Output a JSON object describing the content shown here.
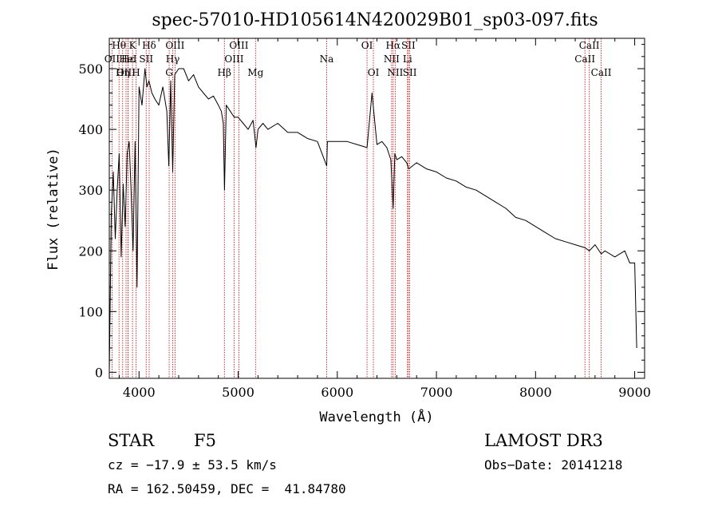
{
  "chart_data": {
    "type": "line",
    "title": "spec-57010-HD105614N420029B01_sp03-097.fits",
    "xlabel": "Wavelength (Å)",
    "ylabel": "Flux (relative)",
    "xlim": [
      3700,
      9100
    ],
    "ylim": [
      -10,
      550
    ],
    "xticks": [
      4000,
      5000,
      6000,
      7000,
      8000,
      9000
    ],
    "yticks": [
      0,
      100,
      200,
      300,
      400,
      500
    ],
    "line_color": "#000000",
    "marker_color": "#cc0000",
    "series": [
      {
        "name": "flux",
        "x": [
          3700,
          3720,
          3740,
          3760,
          3780,
          3800,
          3820,
          3840,
          3860,
          3880,
          3900,
          3920,
          3940,
          3960,
          3980,
          4000,
          4030,
          4060,
          4080,
          4100,
          4130,
          4160,
          4200,
          4240,
          4280,
          4300,
          4320,
          4340,
          4360,
          4400,
          4450,
          4500,
          4550,
          4600,
          4650,
          4700,
          4750,
          4800,
          4830,
          4850,
          4862,
          4880,
          4920,
          4960,
          5000,
          5050,
          5100,
          5150,
          5180,
          5200,
          5250,
          5300,
          5400,
          5500,
          5600,
          5700,
          5800,
          5893,
          5900,
          6000,
          6100,
          6200,
          6300,
          6350,
          6400,
          6450,
          6500,
          6540,
          6563,
          6580,
          6600,
          6650,
          6700,
          6720,
          6800,
          6900,
          7000,
          7100,
          7200,
          7300,
          7400,
          7500,
          7600,
          7700,
          7800,
          7900,
          8000,
          8100,
          8200,
          8300,
          8400,
          8500,
          8542,
          8600,
          8662,
          8700,
          8800,
          8850,
          8900,
          8950,
          9000,
          9020
        ],
        "y": [
          0,
          260,
          330,
          220,
          300,
          360,
          190,
          310,
          240,
          360,
          380,
          300,
          200,
          380,
          140,
          470,
          440,
          500,
          470,
          480,
          460,
          450,
          440,
          470,
          430,
          340,
          480,
          330,
          490,
          500,
          500,
          480,
          490,
          470,
          460,
          450,
          455,
          440,
          430,
          410,
          300,
          440,
          430,
          420,
          420,
          410,
          400,
          415,
          370,
          400,
          410,
          400,
          410,
          395,
          395,
          385,
          380,
          340,
          380,
          380,
          380,
          375,
          370,
          460,
          375,
          380,
          370,
          350,
          270,
          360,
          350,
          355,
          345,
          335,
          345,
          335,
          330,
          320,
          315,
          305,
          300,
          290,
          280,
          270,
          255,
          250,
          240,
          230,
          220,
          215,
          210,
          205,
          200,
          210,
          195,
          200,
          190,
          195,
          200,
          180,
          180,
          40
        ]
      }
    ],
    "line_markers": [
      {
        "label": "Hθ",
        "wavelength": 3798,
        "row": 0
      },
      {
        "label": "OII",
        "wavelength": 3727,
        "row": 1
      },
      {
        "label": "OIII",
        "wavelength": 3869,
        "row": 2
      },
      {
        "label": "K",
        "wavelength": 3934,
        "row": 0
      },
      {
        "label": "Hε",
        "wavelength": 3889,
        "row": 1
      },
      {
        "label": "Hη",
        "wavelength": 3835,
        "row": 2
      },
      {
        "label": "Hδ",
        "wavelength": 4102,
        "row": 0
      },
      {
        "label": "HeI",
        "wavelength": 3888,
        "row": 1
      },
      {
        "label": "H",
        "wavelength": 3969,
        "row": 2
      },
      {
        "label": "SII",
        "wavelength": 4072,
        "row": 1
      },
      {
        "label": "OIII",
        "wavelength": 4363,
        "row": 0
      },
      {
        "label": "Hγ",
        "wavelength": 4340,
        "row": 1
      },
      {
        "label": "G",
        "wavelength": 4304,
        "row": 2
      },
      {
        "label": "Hβ",
        "wavelength": 4861,
        "row": 2
      },
      {
        "label": "OIII",
        "wavelength": 5007,
        "row": 0
      },
      {
        "label": "OIII",
        "wavelength": 4959,
        "row": 1
      },
      {
        "label": "Mg",
        "wavelength": 5175,
        "row": 2
      },
      {
        "label": "Na",
        "wavelength": 5893,
        "row": 1
      },
      {
        "label": "OI",
        "wavelength": 6300,
        "row": 0
      },
      {
        "label": "OI",
        "wavelength": 6364,
        "row": 2
      },
      {
        "label": "Hα",
        "wavelength": 6563,
        "row": 0
      },
      {
        "label": "NII",
        "wavelength": 6548,
        "row": 1
      },
      {
        "label": "NII",
        "wavelength": 6584,
        "row": 2
      },
      {
        "label": "SII",
        "wavelength": 6717,
        "row": 0
      },
      {
        "label": "Li",
        "wavelength": 6708,
        "row": 1
      },
      {
        "label": "SII",
        "wavelength": 6731,
        "row": 2
      },
      {
        "label": "CaII",
        "wavelength": 8542,
        "row": 0
      },
      {
        "label": "CaII",
        "wavelength": 8498,
        "row": 1
      },
      {
        "label": "CaII",
        "wavelength": 8662,
        "row": 2
      }
    ]
  },
  "info": {
    "object_class": "STAR",
    "subclass": "F5",
    "survey": "LAMOST DR3",
    "cz": "cz = −17.9 ± 53.5 km/s",
    "obs_date": "Obs−Date: 20141218",
    "coords": "RA = 162.50459, DEC =  41.84780"
  }
}
